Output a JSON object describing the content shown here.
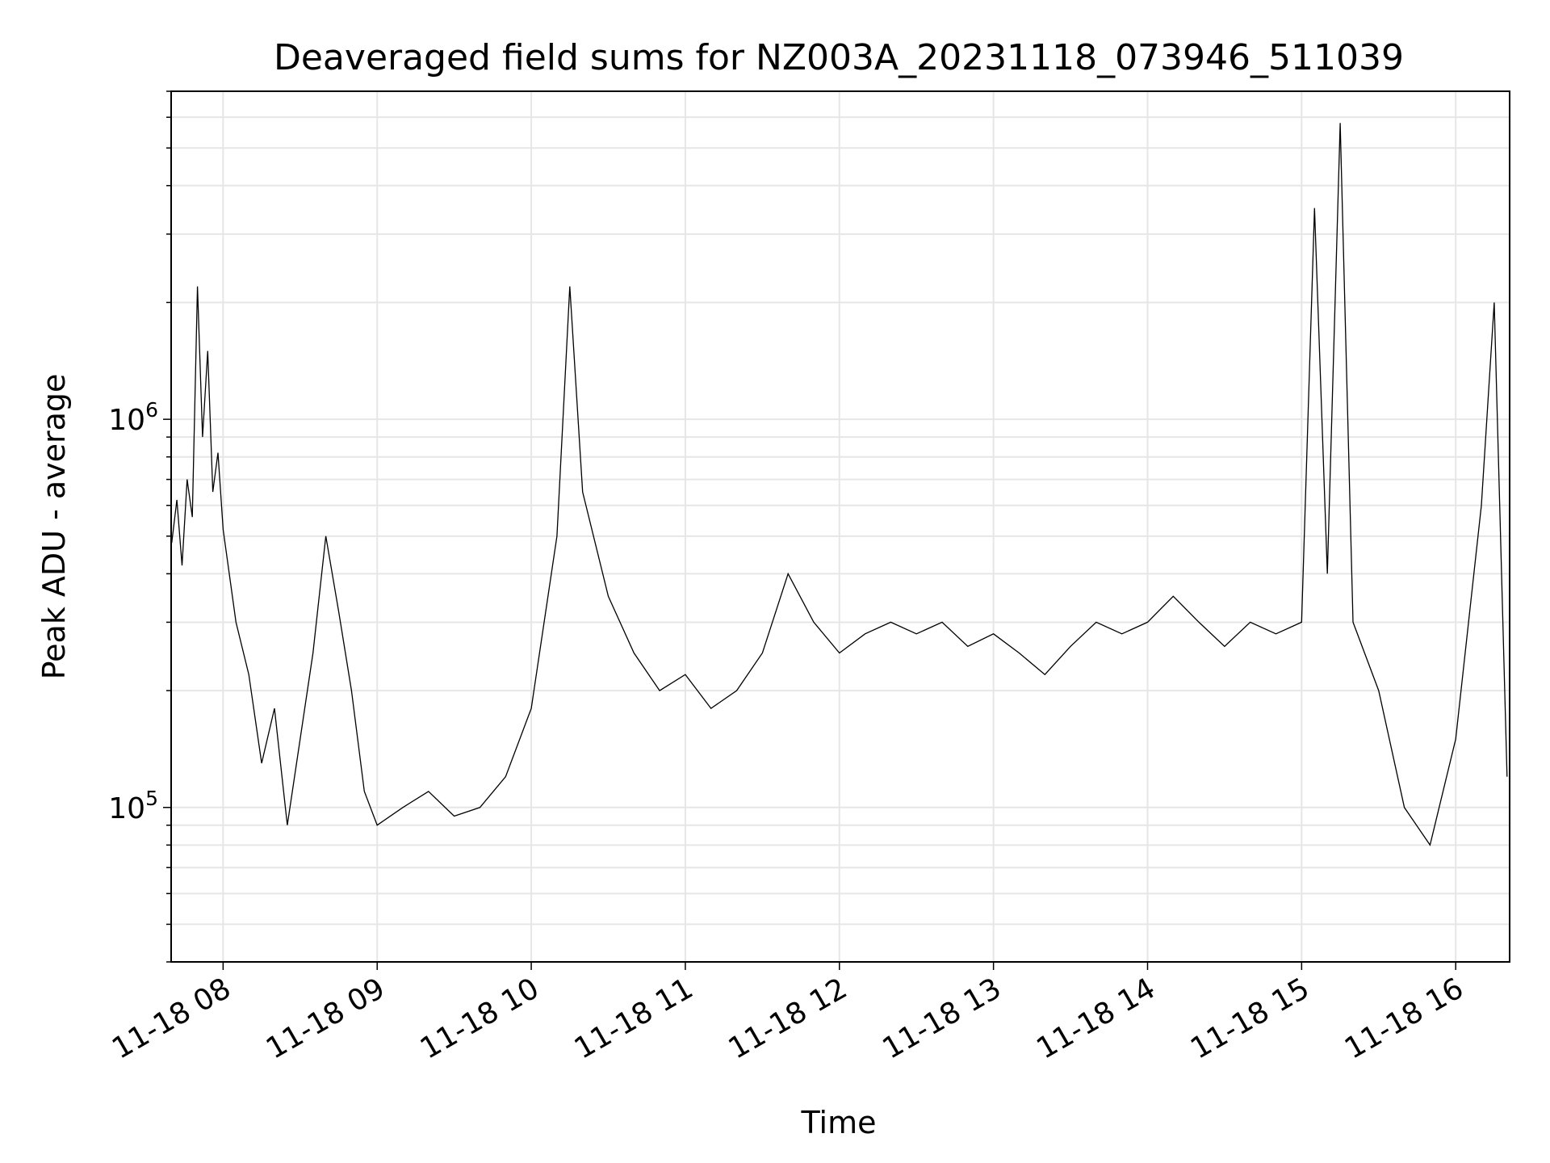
{
  "chart_data": {
    "type": "line",
    "title": "Deaveraged field sums for NZ003A_20231118_073946_511039",
    "xlabel": "Time",
    "ylabel": "Peak ADU - average",
    "y_scale": "log",
    "ylim": [
      40000,
      7000000
    ],
    "xlim": [
      "2023-11-18T07:39:46",
      "2023-11-18T16:21:00"
    ],
    "x_ticks": [
      "2023-11-18T08:00",
      "2023-11-18T09:00",
      "2023-11-18T10:00",
      "2023-11-18T11:00",
      "2023-11-18T12:00",
      "2023-11-18T13:00",
      "2023-11-18T14:00",
      "2023-11-18T15:00",
      "2023-11-18T16:00"
    ],
    "x_tick_labels": [
      "11-18 08",
      "11-18 09",
      "11-18 10",
      "11-18 11",
      "11-18 12",
      "11-18 13",
      "11-18 14",
      "11-18 15",
      "11-18 16"
    ],
    "y_tick_labels": [
      {
        "value": 100000,
        "base": "10",
        "exp": "5"
      },
      {
        "value": 1000000,
        "base": "10",
        "exp": "6"
      }
    ],
    "grid": true,
    "line_color": "#000000",
    "grid_color": "#e6e6e6",
    "series": [
      {
        "values": [
          [
            "2023-11-18T07:40",
            480000
          ],
          [
            "2023-11-18T07:42",
            620000
          ],
          [
            "2023-11-18T07:44",
            420000
          ],
          [
            "2023-11-18T07:46",
            700000
          ],
          [
            "2023-11-18T07:48",
            560000
          ],
          [
            "2023-11-18T07:50",
            2200000
          ],
          [
            "2023-11-18T07:52",
            900000
          ],
          [
            "2023-11-18T07:54",
            1500000
          ],
          [
            "2023-11-18T07:56",
            650000
          ],
          [
            "2023-11-18T07:58",
            820000
          ],
          [
            "2023-11-18T08:00",
            520000
          ],
          [
            "2023-11-18T08:05",
            300000
          ],
          [
            "2023-11-18T08:10",
            220000
          ],
          [
            "2023-11-18T08:15",
            130000
          ],
          [
            "2023-11-18T08:20",
            180000
          ],
          [
            "2023-11-18T08:25",
            90000
          ],
          [
            "2023-11-18T08:30",
            150000
          ],
          [
            "2023-11-18T08:35",
            250000
          ],
          [
            "2023-11-18T08:40",
            500000
          ],
          [
            "2023-11-18T08:45",
            320000
          ],
          [
            "2023-11-18T08:50",
            200000
          ],
          [
            "2023-11-18T08:55",
            110000
          ],
          [
            "2023-11-18T09:00",
            90000
          ],
          [
            "2023-11-18T09:10",
            100000
          ],
          [
            "2023-11-18T09:20",
            110000
          ],
          [
            "2023-11-18T09:30",
            95000
          ],
          [
            "2023-11-18T09:40",
            100000
          ],
          [
            "2023-11-18T09:50",
            120000
          ],
          [
            "2023-11-18T10:00",
            180000
          ],
          [
            "2023-11-18T10:10",
            500000
          ],
          [
            "2023-11-18T10:15",
            2200000
          ],
          [
            "2023-11-18T10:20",
            650000
          ],
          [
            "2023-11-18T10:30",
            350000
          ],
          [
            "2023-11-18T10:40",
            250000
          ],
          [
            "2023-11-18T10:50",
            200000
          ],
          [
            "2023-11-18T11:00",
            220000
          ],
          [
            "2023-11-18T11:10",
            180000
          ],
          [
            "2023-11-18T11:20",
            200000
          ],
          [
            "2023-11-18T11:30",
            250000
          ],
          [
            "2023-11-18T11:40",
            400000
          ],
          [
            "2023-11-18T11:50",
            300000
          ],
          [
            "2023-11-18T12:00",
            250000
          ],
          [
            "2023-11-18T12:10",
            280000
          ],
          [
            "2023-11-18T12:20",
            300000
          ],
          [
            "2023-11-18T12:30",
            280000
          ],
          [
            "2023-11-18T12:40",
            300000
          ],
          [
            "2023-11-18T12:50",
            260000
          ],
          [
            "2023-11-18T13:00",
            280000
          ],
          [
            "2023-11-18T13:10",
            250000
          ],
          [
            "2023-11-18T13:20",
            220000
          ],
          [
            "2023-11-18T13:30",
            260000
          ],
          [
            "2023-11-18T13:40",
            300000
          ],
          [
            "2023-11-18T13:50",
            280000
          ],
          [
            "2023-11-18T14:00",
            300000
          ],
          [
            "2023-11-18T14:10",
            350000
          ],
          [
            "2023-11-18T14:20",
            300000
          ],
          [
            "2023-11-18T14:30",
            260000
          ],
          [
            "2023-11-18T14:40",
            300000
          ],
          [
            "2023-11-18T14:50",
            280000
          ],
          [
            "2023-11-18T15:00",
            300000
          ],
          [
            "2023-11-18T15:05",
            3500000
          ],
          [
            "2023-11-18T15:10",
            400000
          ],
          [
            "2023-11-18T15:15",
            5800000
          ],
          [
            "2023-11-18T15:20",
            300000
          ],
          [
            "2023-11-18T15:30",
            200000
          ],
          [
            "2023-11-18T15:40",
            100000
          ],
          [
            "2023-11-18T15:50",
            80000
          ],
          [
            "2023-11-18T16:00",
            150000
          ],
          [
            "2023-11-18T16:05",
            300000
          ],
          [
            "2023-11-18T16:10",
            600000
          ],
          [
            "2023-11-18T16:15",
            2000000
          ],
          [
            "2023-11-18T16:20",
            120000
          ]
        ]
      }
    ]
  }
}
